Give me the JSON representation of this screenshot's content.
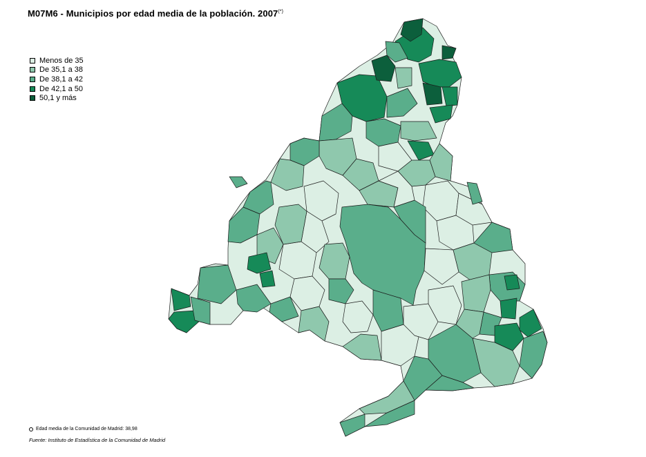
{
  "title": {
    "text": "M07M6 - Municipios por edad media de la población. 2007",
    "superscript": "(*)"
  },
  "legend": {
    "items": [
      {
        "label": "Menos de 35",
        "color": "#dcefe4"
      },
      {
        "label": "De 35,1 a 38",
        "color": "#8fc8ad"
      },
      {
        "label": "De 38,1 a 42",
        "color": "#5aae8b"
      },
      {
        "label": "De 42,1 a 50",
        "color": "#168a58"
      },
      {
        "label": "50,1 y más",
        "color": "#0c5f3c"
      }
    ]
  },
  "footnote": "Edad media de la Comunidad de Madrid: 38,98",
  "source": "Fuente: Instituto de Estadística de la Comunidad de Madrid",
  "icons": {
    "footnote_marker": "circle-icon"
  }
}
